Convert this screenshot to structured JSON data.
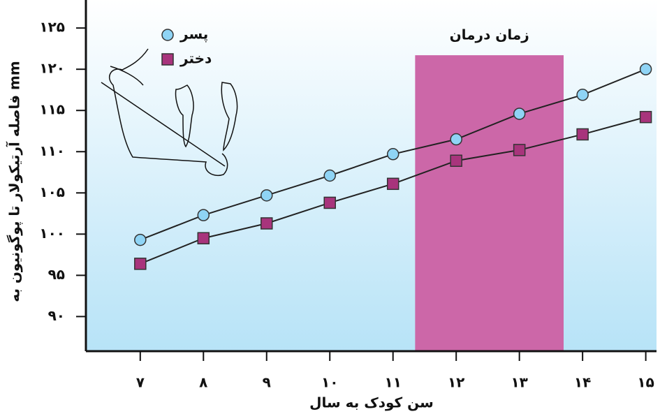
{
  "chart_data": {
    "type": "line",
    "x_label": "سن کودک به سال",
    "y_label": "فاصله آرتیکولار تا پوگونیون به mm",
    "x": [
      7,
      8,
      9,
      10,
      11,
      12,
      13,
      14,
      15
    ],
    "series": [
      {
        "name": "پسر",
        "color": "#8fd4f5",
        "marker": "circle",
        "values": [
          99.3,
          102.3,
          104.7,
          107.1,
          109.7,
          111.5,
          114.6,
          116.9,
          120.0
        ]
      },
      {
        "name": "دختر",
        "color": "#a8347c",
        "marker": "square",
        "values": [
          96.4,
          99.5,
          101.3,
          103.8,
          106.1,
          108.9,
          110.2,
          112.1,
          114.2
        ]
      }
    ],
    "span": {
      "label": "زمان درمان",
      "xlim": [
        11.35,
        13.7
      ],
      "ylim": [
        85.8,
        121.7
      ],
      "color": "#cc67a8"
    },
    "xlim": [
      6.14,
      15.17
    ],
    "ylim": [
      85.8,
      128.4
    ],
    "xticks": [
      {
        "value": 7,
        "label": "۷"
      },
      {
        "value": 8,
        "label": "۸"
      },
      {
        "value": 9,
        "label": "۹"
      },
      {
        "value": 10,
        "label": "۱۰"
      },
      {
        "value": 11,
        "label": "۱۱"
      },
      {
        "value": 12,
        "label": "۱۲"
      },
      {
        "value": 13,
        "label": "۱۳"
      },
      {
        "value": 14,
        "label": "۱۴"
      },
      {
        "value": 15,
        "label": "۱۵"
      }
    ],
    "yticks": [
      {
        "value": 90,
        "label": "۹۰"
      },
      {
        "value": 95,
        "label": "۹۵"
      },
      {
        "value": 100,
        "label": "۱۰۰"
      },
      {
        "value": 105,
        "label": "۱۰۵"
      },
      {
        "value": 110,
        "label": "۱۱۰"
      },
      {
        "value": 115,
        "label": "۱۱۵"
      },
      {
        "value": 120,
        "label": "۱۲۰"
      },
      {
        "value": 125,
        "label": "۱۲۵"
      }
    ]
  }
}
